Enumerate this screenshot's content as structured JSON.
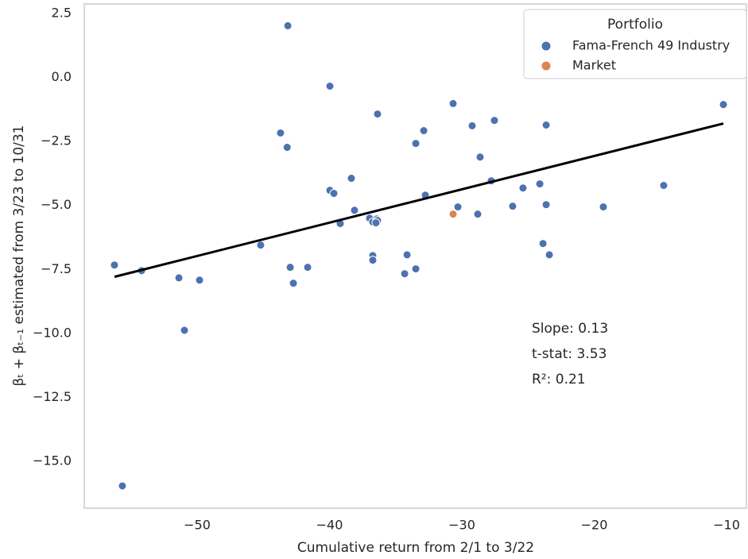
{
  "chart_data": {
    "type": "scatter",
    "xlabel": "Cumulative return from 2/1 to 3/22",
    "ylabel": "βₜ + βₜ₋₁ estimated from 3/23 to 10/31",
    "xlim": [
      -58.53,
      -8.44
    ],
    "ylim": [
      -16.83,
      2.87
    ],
    "xticks": [
      {
        "value": -50,
        "label": "−50"
      },
      {
        "value": -40,
        "label": "−40"
      },
      {
        "value": -30,
        "label": "−30"
      },
      {
        "value": -20,
        "label": "−20"
      },
      {
        "value": -10,
        "label": "−10"
      }
    ],
    "yticks": [
      {
        "value": 2.5,
        "label": "2.5"
      },
      {
        "value": 0,
        "label": "0.0"
      },
      {
        "value": -2.5,
        "label": "−2.5"
      },
      {
        "value": -5,
        "label": "−5.0"
      },
      {
        "value": -7.5,
        "label": "−7.5"
      },
      {
        "value": -10,
        "label": "−10.0"
      },
      {
        "value": -12.5,
        "label": "−12.5"
      },
      {
        "value": -15,
        "label": "−15.0"
      }
    ],
    "legend_title": "Portfolio",
    "legend": "upper right",
    "series": [
      {
        "name": "Fama-French 49 Industry",
        "color": "#4c72b0",
        "x": [
          -56.25,
          -54.2,
          -55.65,
          -51.38,
          -50.96,
          -49.82,
          -45.2,
          -43.15,
          -43.7,
          -43.2,
          -42.97,
          -42.73,
          -41.65,
          -39.97,
          -39.97,
          -39.67,
          -39.19,
          -38.35,
          -38.11,
          -36.97,
          -36.73,
          -36.73,
          -36.73,
          -36.43,
          -36.37,
          -36.49,
          -36.37,
          -34.14,
          -34.32,
          -33.48,
          -33.48,
          -32.88,
          -32.76,
          -30.66,
          -30.3,
          -29.22,
          -28.8,
          -28.62,
          -27.78,
          -27.54,
          -26.16,
          -25.38,
          -24.11,
          -23.87,
          -23.63,
          -23.63,
          -23.39,
          -19.31,
          -14.75,
          -10.24
        ],
        "y": [
          -7.33,
          -7.55,
          -15.96,
          -7.83,
          -9.88,
          -7.92,
          -6.55,
          2.02,
          -2.17,
          -2.73,
          -7.42,
          -8.04,
          -7.42,
          -0.34,
          -4.41,
          -4.53,
          -5.71,
          -3.94,
          -5.19,
          -5.5,
          -5.65,
          -6.96,
          -7.14,
          -5.53,
          -5.59,
          -5.68,
          -1.43,
          -6.93,
          -7.67,
          -7.48,
          -2.58,
          -2.08,
          -4.6,
          -1.02,
          -5.06,
          -1.89,
          -5.34,
          -3.11,
          -4.04,
          -1.68,
          -5.03,
          -4.32,
          -4.16,
          -6.49,
          -1.86,
          -4.97,
          -6.93,
          -5.06,
          -4.22,
          -1.06
        ]
      },
      {
        "name": "Market",
        "color": "#dd8452",
        "x": [
          -30.66
        ],
        "y": [
          -5.34
        ]
      }
    ],
    "fit": {
      "color": "#000000",
      "x": [
        -56.25,
        -10.24
      ],
      "y": [
        -7.79,
        -1.8
      ]
    },
    "annotations": [
      "Slope: 0.13",
      "t-stat: 3.53",
      "R²: 0.21"
    ]
  }
}
